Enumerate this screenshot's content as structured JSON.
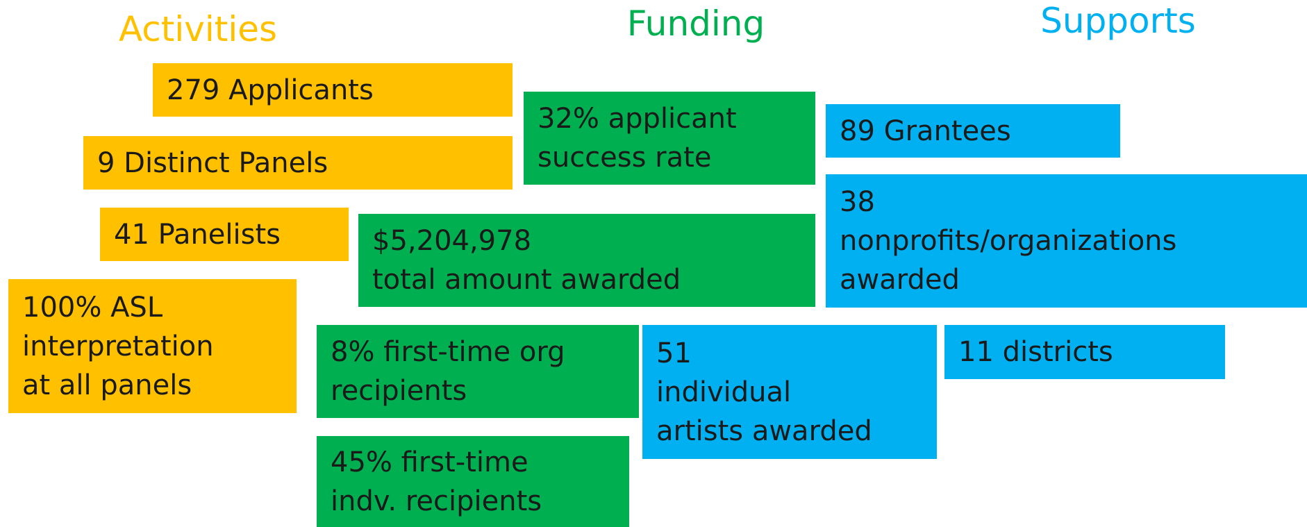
{
  "headings": [
    "Activities",
    "Funding",
    "Supports"
  ],
  "boxes": [
    {
      "lines": [
        "279 Applicants"
      ]
    },
    {
      "lines": [
        "9 Distinct Panels"
      ]
    },
    {
      "lines": [
        "41 Panelists"
      ]
    },
    {
      "lines": [
        "100% ASL",
        "interpretation",
        "at all panels"
      ]
    },
    {
      "lines": [
        "32% applicant",
        "success rate"
      ]
    },
    {
      "lines": [
        "$5,204,978",
        "total amount awarded"
      ]
    },
    {
      "lines": [
        "8% first-time org",
        "recipients"
      ]
    },
    {
      "lines": [
        "45% first-time",
        "indv. recipients"
      ]
    },
    {
      "lines": [
        "89 Grantees"
      ]
    },
    {
      "lines": [
        "38",
        "nonprofits/organizations",
        "awarded"
      ]
    },
    {
      "lines": [
        "51",
        "individual",
        "artists awarded"
      ]
    },
    {
      "lines": [
        "11 districts"
      ]
    }
  ]
}
